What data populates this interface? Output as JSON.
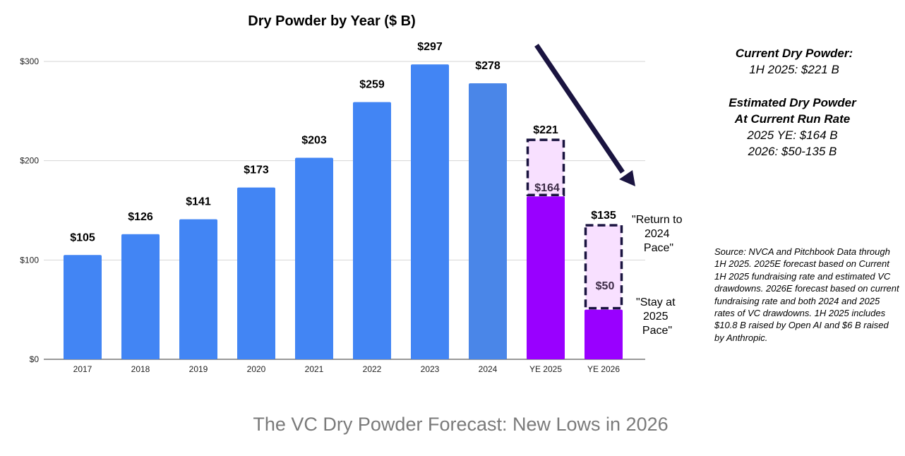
{
  "chart_data": {
    "type": "bar",
    "title": "Dry Powder by Year ($ B)",
    "xlabel": "",
    "ylabel": "",
    "ylim": [
      0,
      300
    ],
    "yticks": [
      0,
      100,
      200,
      300
    ],
    "ytick_labels": [
      "$0",
      "$100",
      "$200",
      "$300"
    ],
    "grid": true,
    "categories": [
      "2017",
      "2018",
      "2019",
      "2020",
      "2021",
      "2022",
      "2023",
      "2024",
      "YE 2025",
      "YE 2026"
    ],
    "values": [
      105,
      126,
      141,
      173,
      203,
      259,
      297,
      278,
      221,
      135
    ],
    "value_labels": [
      "$105",
      "$126",
      "$141",
      "$173",
      "$203",
      "$259",
      "$297",
      "$278",
      "$221",
      "$135"
    ],
    "forecast": [
      {
        "category": "YE 2025",
        "base_value": 164,
        "base_label": "$164",
        "range_top": 221
      },
      {
        "category": "YE 2026",
        "base_value": 50,
        "base_label": "$50",
        "range_top": 135
      }
    ],
    "annotations": {
      "upper": "\"Return to 2024 Pace\"",
      "lower": "\"Stay at 2025 Pace\""
    },
    "colors": {
      "actual": "#4285f4",
      "actual_2024": "#4a86e8",
      "forecast_base": "#9900ff",
      "forecast_range": "#f8e0ff",
      "dashed_border": "#1a1440",
      "arrow": "#1a1440",
      "grid": "#d6d6d6"
    }
  },
  "sidebar": {
    "current_heading": "Current Dry Powder:",
    "current_value": "1H 2025: $221 B",
    "estimated_heading_1": "Estimated Dry Powder",
    "estimated_heading_2": "At Current Run Rate",
    "estimated_2025": "2025 YE: $164 B",
    "estimated_2026": "2026: $50-135 B"
  },
  "source_note": "Source: NVCA and Pitchbook Data through 1H 2025. 2025E forecast based on Current 1H 2025 fundraising rate and estimated VC drawdowns. 2026E forecast based on current fundraising rate and both 2024 and 2025 rates of VC drawdowns. 1H 2025 includes $10.8 B raised by Open AI and $6 B raised by Anthropic.",
  "caption": "The VC Dry Powder Forecast: New Lows in 2026"
}
